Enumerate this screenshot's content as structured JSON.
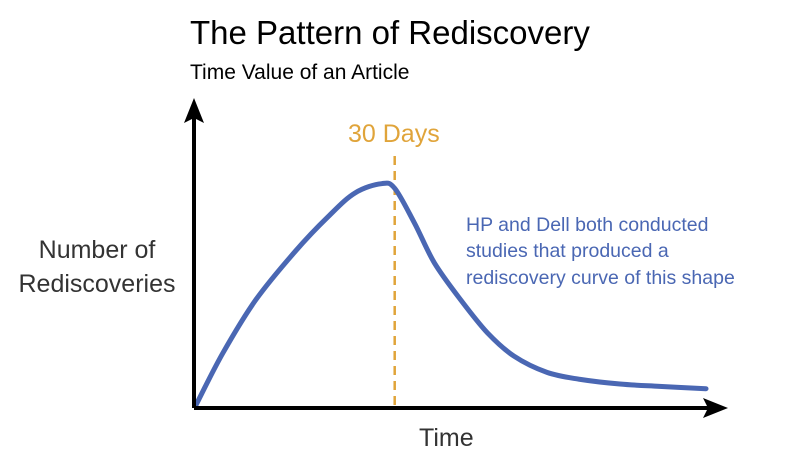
{
  "chart_data": {
    "type": "line",
    "title": "The Pattern of Rediscovery",
    "subtitle": "Time Value of an Article",
    "xlabel": "Time",
    "ylabel_lines": [
      "Number of",
      "Rediscoveries"
    ],
    "marker": {
      "label": "30 Days",
      "x": 30,
      "style": "dashed",
      "color": "#e0a43a"
    },
    "annotation_lines": [
      "HP and Dell both conducted",
      "studies that produced a",
      "rediscovery curve of this shape"
    ],
    "xlim": [
      0,
      77
    ],
    "ylim": [
      0,
      100
    ],
    "ticks": "none",
    "grid": false,
    "series": [
      {
        "color": "#4a67b3",
        "points": [
          [
            0,
            0
          ],
          [
            4,
            22
          ],
          [
            9,
            45
          ],
          [
            15,
            66
          ],
          [
            20,
            81
          ],
          [
            24,
            91
          ],
          [
            28,
            95
          ],
          [
            30,
            93
          ],
          [
            33,
            78
          ],
          [
            36,
            61
          ],
          [
            40,
            45
          ],
          [
            44,
            31
          ],
          [
            48,
            21
          ],
          [
            53,
            14
          ],
          [
            58,
            11
          ],
          [
            64,
            9
          ],
          [
            70,
            8
          ],
          [
            77,
            7
          ]
        ]
      }
    ]
  }
}
